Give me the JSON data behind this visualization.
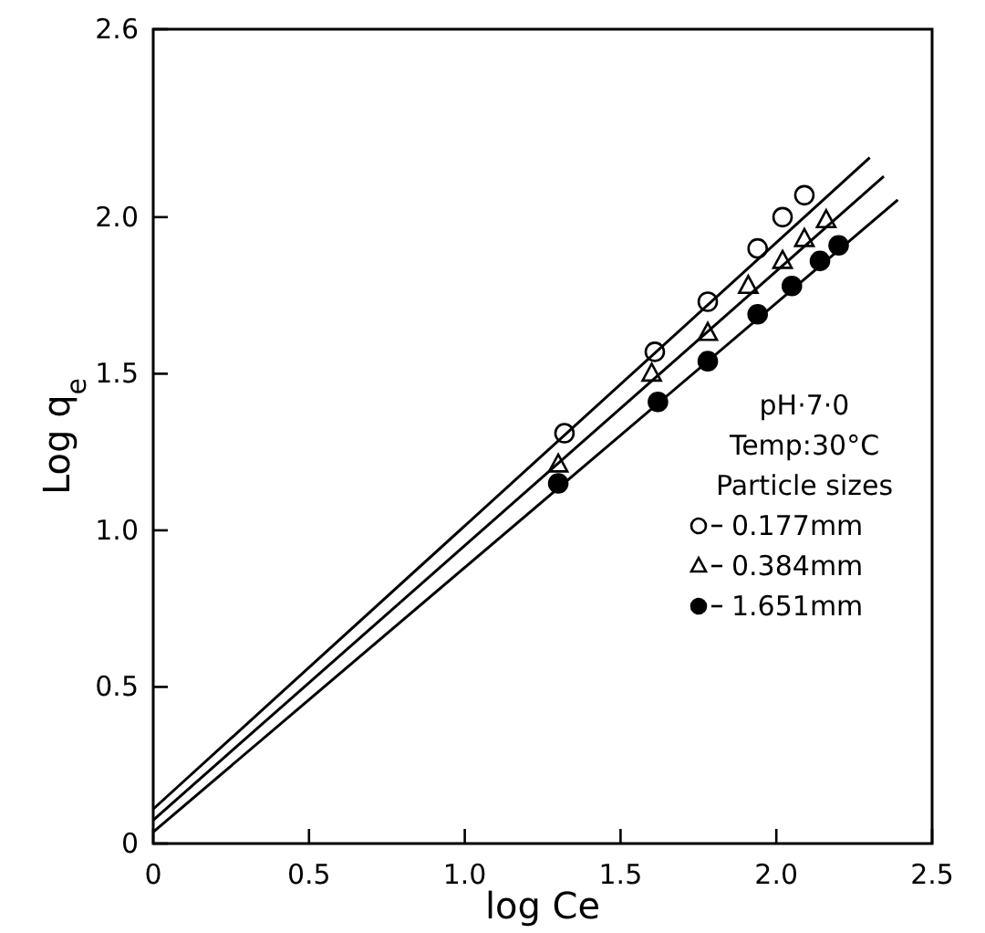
{
  "chart_data": {
    "type": "scatter",
    "xlabel": "log Ce",
    "ylabel": "Log q$_{e}$",
    "legend_title": "Particle sizes",
    "annotations": [
      "pH·7·0",
      "Temp:30°C"
    ],
    "xlim": [
      0,
      2.5
    ],
    "ylim": [
      0,
      2.6
    ],
    "xticks": [
      0,
      0.5,
      {
        "value": 1,
        "label": "1.0"
      },
      1.5,
      {
        "value": 2,
        "label": "2.0"
      },
      2.5
    ],
    "yticks": [
      0,
      0.5,
      {
        "value": 1,
        "label": "1.0"
      },
      1.5,
      {
        "value": 2,
        "label": "2.0"
      },
      2.6
    ],
    "grid": false,
    "legend": "bottom right",
    "series": [
      {
        "name": "0.177mm",
        "marker": "circle",
        "color": "#ffffff",
        "x": [
          1.32,
          1.61,
          1.78,
          1.94,
          2.02,
          2.09
        ],
        "values": [
          1.31,
          1.57,
          1.73,
          1.9,
          2.0,
          2.07
        ]
      },
      {
        "name": "0.384mm",
        "marker": "triangle",
        "color": "#ffffff",
        "x": [
          1.3,
          1.6,
          1.78,
          1.91,
          2.02,
          2.09,
          2.16
        ],
        "values": [
          1.21,
          1.5,
          1.63,
          1.78,
          1.86,
          1.93,
          1.99
        ]
      },
      {
        "name": "1.651mm",
        "marker": "circle",
        "color": "#000000",
        "x": [
          1.3,
          1.62,
          1.78,
          1.94,
          2.05,
          2.14,
          2.2
        ],
        "values": [
          1.15,
          1.41,
          1.54,
          1.69,
          1.78,
          1.86,
          1.91
        ]
      },
      {
        "type": "line",
        "color": "#000000",
        "line_style": "solid",
        "marker": "none",
        "x": [
          0,
          2.3
        ],
        "values": [
          0.11,
          2.19
        ]
      },
      {
        "type": "line",
        "color": "#000000",
        "line_style": "solid",
        "marker": "none",
        "x": [
          0,
          2.345
        ],
        "values": [
          0.075,
          2.13
        ]
      },
      {
        "type": "line",
        "color": "#000000",
        "line_style": "solid",
        "marker": "none",
        "x": [
          0,
          2.39
        ],
        "values": [
          0.037,
          2.055
        ]
      }
    ]
  }
}
